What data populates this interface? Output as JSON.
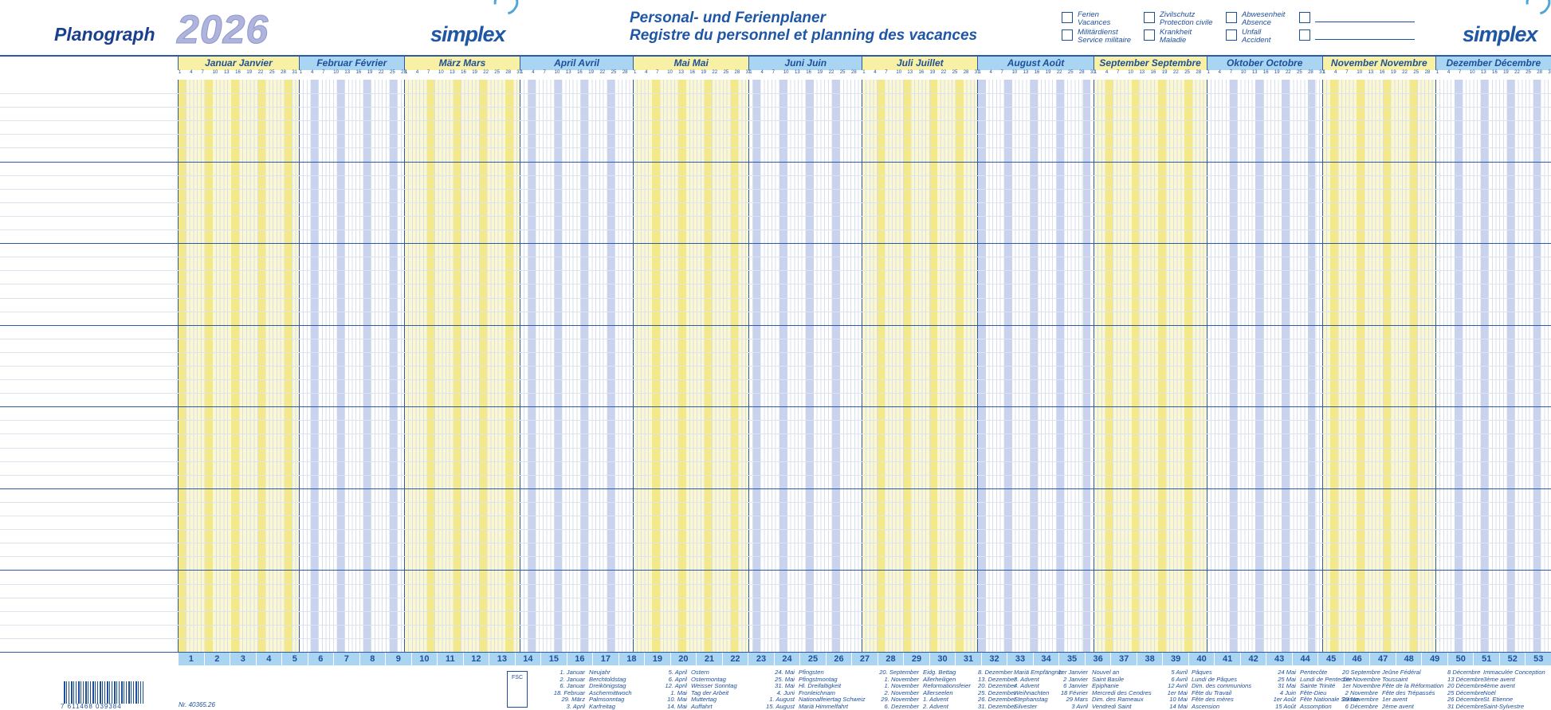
{
  "header": {
    "brand": "Planograph",
    "year": "2026",
    "logo": "simplex",
    "title_de": "Personal- und Ferienplaner",
    "title_fr": "Registre du personnel et planning des vacances"
  },
  "legend": [
    {
      "l1": "Ferien",
      "l2": "Vacances"
    },
    {
      "l1": "Zivilschutz",
      "l2": "Protection civile"
    },
    {
      "l1": "Abwesenheit",
      "l2": "Absence"
    },
    {
      "l1": "Militärdienst",
      "l2": "Service militaire"
    },
    {
      "l1": "Krankheit",
      "l2": "Maladie"
    },
    {
      "l1": "Unfall",
      "l2": "Accident"
    }
  ],
  "months": [
    {
      "label": "Januar  Janvier",
      "weeks": 4.6,
      "color": "yellow"
    },
    {
      "label": "Februar  Février",
      "weeks": 4,
      "color": "blue"
    },
    {
      "label": "März  Mars",
      "weeks": 4.4,
      "color": "yellow"
    },
    {
      "label": "April  Avril",
      "weeks": 4.3,
      "color": "blue"
    },
    {
      "label": "Mai  Mai",
      "weeks": 4.4,
      "color": "yellow"
    },
    {
      "label": "Juni  Juin",
      "weeks": 4.3,
      "color": "blue"
    },
    {
      "label": "Juli  Juillet",
      "weeks": 4.4,
      "color": "yellow"
    },
    {
      "label": "August  Août",
      "weeks": 4.4,
      "color": "blue"
    },
    {
      "label": "September  Septembre",
      "weeks": 4.3,
      "color": "yellow"
    },
    {
      "label": "Oktober  Octobre",
      "weeks": 4.4,
      "color": "blue"
    },
    {
      "label": "November  Novembre",
      "weeks": 4.3,
      "color": "yellow"
    },
    {
      "label": "Dezember  Décembre",
      "weeks": 4.4,
      "color": "blue"
    }
  ],
  "weeks": [
    "1",
    "2",
    "3",
    "4",
    "5",
    "6",
    "7",
    "8",
    "9",
    "10",
    "11",
    "12",
    "13",
    "14",
    "15",
    "16",
    "17",
    "18",
    "19",
    "20",
    "21",
    "22",
    "23",
    "24",
    "25",
    "26",
    "27",
    "28",
    "29",
    "30",
    "31",
    "32",
    "33",
    "34",
    "35",
    "36",
    "37",
    "38",
    "39",
    "40",
    "41",
    "42",
    "43",
    "44",
    "45",
    "46",
    "47",
    "48",
    "49",
    "50",
    "51",
    "52",
    "53"
  ],
  "footer": {
    "barcode_number": "7 611468 039384",
    "article_number": "Nr. 40365.26",
    "fsc": "FSC"
  },
  "holidays": [
    {
      "dates": "1. Januar\n2. Januar\n6. Januar\n18. Februar\n29. März\n3. April",
      "names": "Neujahr\nBerchtoldstag\nDreikönigstag\nAschermittwoch\nPalmsonntag\nKarfreitag"
    },
    {
      "dates": "5. April\n6. April\n12. April\n1. Mai\n10. Mai\n14. Mai",
      "names": "Ostern\nOstermontag\nWeisser Sonntag\nTag der Arbeit\nMuttertag\nAuffahrt"
    },
    {
      "dates": "24. Mai\n25. Mai\n31. Mai\n4. Juni\n1. August\n15. August",
      "names": "Pfingsten\nPfingstmontag\nHl. Dreifaltigkeit\nFronleichnam\nNationalfeiertag Schweiz\nMariä Himmelfahrt"
    },
    {
      "dates": "20. September\n1. November\n1. November\n2. November\n29. November\n6. Dezember",
      "names": "Eidg. Bettag\nAllerheiligen\nReformationsfeier\nAllerseelen\n1. Advent\n2. Advent"
    },
    {
      "dates": "8. Dezember\n13. Dezember\n20. Dezember\n25. Dezember\n26. Dezember\n31. Dezember",
      "names": "Mariä Empfängnis\n3. Advent\n4. Advent\nWeihnachten\nStephanstag\nSilvester"
    },
    {
      "dates": "1er Janvier\n2 Janvier\n6 Janvier\n18 Février\n29 Mars\n3 Avril",
      "names": "Nouvel an\nSaint Basile\nEpiphanie\nMercredi des Cendres\nDim. des Rameaux\nVendredi Saint"
    },
    {
      "dates": "5 Avril\n6 Avril\n12 Avril\n1er Mai\n10 Mai\n14 Mai",
      "names": "Pâques\nLundi de Pâques\nDim. des communions\nFête du Travail\nFête des mères\nAscension"
    },
    {
      "dates": "24 Mai\n25 Mai\n31 Mai\n4 Juin\n1er Août\n15 Août",
      "names": "Pentecôte\nLundi de Pentecôte\nSainte Trinité\nFête-Dieu\nFête Nationale Suisse\nAssomption"
    },
    {
      "dates": "20 Septembre\n1er Novembre\n1er Novembre\n2 Novembre\n29 Novembre\n6 Décembre",
      "names": "Jeûne Fédéral\nToussaint\nFête de la Réformation\nFête des Trépassés\n1er avent\n2ème avent"
    },
    {
      "dates": "8 Décembre\n13 Décembre\n20 Décembre\n25 Décembre\n26 Décembre\n31 Décembre",
      "names": "Immaculée Conception\n3ème avent\n4ème avent\nNoël\nSt. Etienne\nSaint-Sylvestre"
    }
  ]
}
